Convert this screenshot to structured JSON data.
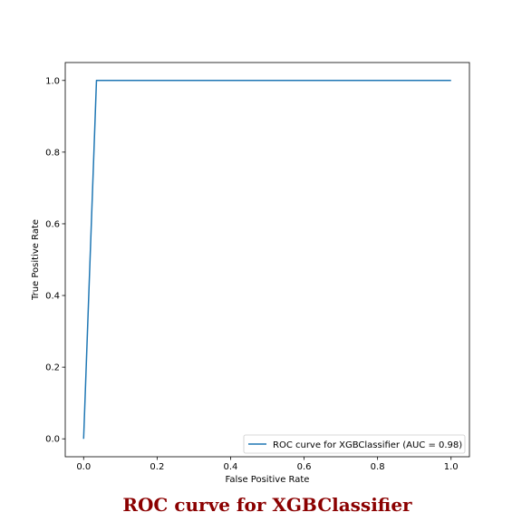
{
  "chart_data": {
    "type": "line",
    "title": "",
    "xlabel": "False Positive Rate",
    "ylabel": "True Positive Rate",
    "xlim": [
      -0.05,
      1.05
    ],
    "ylim": [
      -0.05,
      1.05
    ],
    "xticks": [
      0.0,
      0.2,
      0.4,
      0.6,
      0.8,
      1.0
    ],
    "xtick_labels": [
      "0.0",
      "0.2",
      "0.4",
      "0.6",
      "0.8",
      "1.0"
    ],
    "yticks": [
      0.0,
      0.2,
      0.4,
      0.6,
      0.8,
      1.0
    ],
    "ytick_labels": [
      "0.0",
      "0.2",
      "0.4",
      "0.6",
      "0.8",
      "1.0"
    ],
    "grid": false,
    "legend_position": "lower-right",
    "series": [
      {
        "name": "ROC curve for XGBClassifier (AUC = 0.98)",
        "color": "#1f77b4",
        "x": [
          0.0,
          0.035,
          1.0
        ],
        "y": [
          0.0,
          1.0,
          1.0
        ]
      }
    ]
  },
  "caption": {
    "text": "ROC curve for XGBClassifier",
    "color": "#8b0000"
  }
}
